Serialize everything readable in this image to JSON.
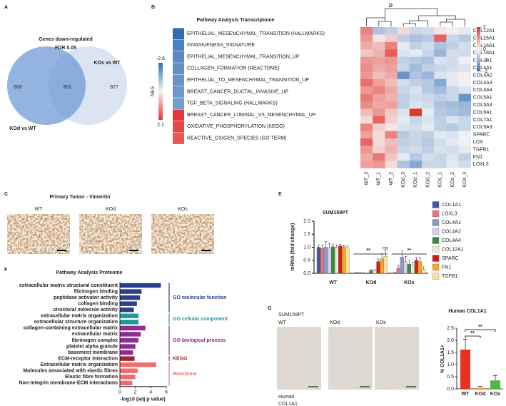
{
  "chart_data": [
    {
      "type": "venn",
      "letter": "A",
      "title": "Genes down-regulated",
      "subtitle": "FDR 0.05",
      "sets": [
        "KOd vs WT",
        "KOs vs WT"
      ],
      "counts": [
        600,
        301,
        927
      ],
      "colors": [
        "#6f9bd6",
        "#dbe4f2"
      ]
    },
    {
      "type": "pathway-heat",
      "letter": "B",
      "title": "Pathway Analysis Transcriptome",
      "scale_label": "NES",
      "nes_ticks": [
        -2.6,
        2.1
      ],
      "colors": [
        "#2f6db5",
        "#e8363a"
      ],
      "pathways": [
        "EPITHELIAL_MESENCHYMAL_TRANSITION (HALLMARKS)",
        "INVASIVENESS_SIGNATURE",
        "EPITHELIAL_MESENCHYMAL_TRANSITION_UP",
        "COLLAGEN_FORMATION (REACTOME)",
        "EPITHELIAL_TO_MESENCHYMAL_TRANSITION_UP",
        "BREAST_CANCER_DUCTAL_INVASIVE_UP",
        "TGF_BETA_SIGNALING (HALLMARKS)",
        "BREAST_CANCER_LUMINAL_VS_MESENCHYMAL_UP",
        "OXIDATIVE_PHOSPHORYLATION (KEGG)",
        "REACTIVE_OXIGEN_SPECIES (GO TERM)"
      ],
      "nes": [
        -2.6,
        -2.2,
        -2.0,
        -1.9,
        -1.8,
        -1.7,
        -1.6,
        2.1,
        1.9,
        1.7
      ]
    },
    {
      "type": "image-row",
      "letter": "C",
      "title": "Primary Tumor - Vimentin",
      "labels": [
        "WT",
        "KOd",
        "KOs"
      ]
    },
    {
      "type": "heatmap",
      "letter": "D",
      "zlim": [
        -2,
        2
      ],
      "zticks": [
        2,
        1,
        0,
        -1,
        -2
      ],
      "colormap": [
        "#3b73b9",
        "#f7f7f7",
        "#e0362c"
      ],
      "columns": [
        "WT_3",
        "WT_1",
        "WT_2",
        "KOd_3",
        "KOd_1",
        "KOd_2",
        "KOs_1",
        "KOs_2",
        "KOs_3"
      ],
      "rows": [
        "COL12A1",
        "COL15A1",
        "COL16A1",
        "COL18A1",
        "COL1A1",
        "COL4A1",
        "COL4A2",
        "COL4A3",
        "COL4A4",
        "COL5A1",
        "COL5A3",
        "COL6A1",
        "COL7A1",
        "COL9A3",
        "SPARC",
        "LOX",
        "TGFB1",
        "FN1",
        "LOXL3"
      ],
      "values": [
        [
          1.2,
          -0.8,
          -0.6,
          0.3,
          -0.5,
          -0.4,
          0.2,
          0.1,
          -0.2
        ],
        [
          1.0,
          0.2,
          0.4,
          -0.6,
          -0.8,
          -0.7,
          1.5,
          -0.5,
          -0.7
        ],
        [
          0.8,
          0.6,
          1.2,
          -0.2,
          -0.6,
          -0.4,
          -0.8,
          -0.6,
          -0.4
        ],
        [
          0.5,
          0.7,
          1.6,
          -0.3,
          -0.2,
          -0.5,
          -1.0,
          -0.4,
          -0.4
        ],
        [
          1.0,
          0.9,
          1.0,
          -0.6,
          -0.7,
          -0.8,
          -0.3,
          -0.4,
          -0.1
        ],
        [
          1.1,
          0.8,
          0.9,
          -0.5,
          -0.9,
          -0.6,
          -0.5,
          -0.4,
          -0.3
        ],
        [
          1.0,
          0.6,
          0.8,
          -1.5,
          -0.8,
          -1.0,
          -0.3,
          -0.2,
          0.1
        ],
        [
          1.4,
          0.9,
          0.6,
          -0.4,
          -0.6,
          -0.7,
          -1.2,
          -0.2,
          -0.1
        ],
        [
          1.0,
          1.2,
          0.8,
          -0.5,
          -0.3,
          -0.7,
          -0.9,
          -0.5,
          -0.3
        ],
        [
          1.3,
          0.9,
          0.7,
          -0.6,
          -0.4,
          -0.5,
          -0.6,
          -0.5,
          -1.5
        ],
        [
          1.1,
          0.8,
          0.9,
          -0.6,
          -0.3,
          -0.4,
          -0.8,
          -0.9,
          -1.0
        ],
        [
          0.6,
          1.0,
          0.5,
          -0.3,
          2.0,
          -0.2,
          -0.7,
          -0.8,
          -0.9
        ],
        [
          0.3,
          1.5,
          0.4,
          -0.2,
          -0.5,
          -0.3,
          -0.6,
          -0.3,
          -0.5
        ],
        [
          1.2,
          0.4,
          0.2,
          -0.3,
          -0.4,
          -0.2,
          -0.6,
          -0.7,
          -0.5
        ],
        [
          0.9,
          0.3,
          1.2,
          -0.7,
          -0.5,
          -0.6,
          -0.2,
          -0.3,
          -0.1
        ],
        [
          1.5,
          0.3,
          0.6,
          -0.6,
          -0.5,
          -0.7,
          -0.4,
          -0.2,
          -0.1
        ],
        [
          1.0,
          0.4,
          0.7,
          -0.5,
          -0.4,
          -0.6,
          -0.3,
          -0.4,
          -0.2
        ],
        [
          0.8,
          1.3,
          0.5,
          -0.2,
          -0.7,
          -0.4,
          -0.5,
          -0.3,
          -0.6
        ],
        [
          0.9,
          1.0,
          0.3,
          -0.8,
          -1.2,
          -0.5,
          -0.5,
          -0.2,
          -0.4
        ]
      ]
    },
    {
      "type": "bar",
      "letter": "E",
      "title": "SUM159PT",
      "ylabel": "mRNA (fold change)",
      "categories": [
        "WT",
        "KOd",
        "KOs"
      ],
      "ylim": [
        0,
        2
      ],
      "yticks": [
        {
          "value": 0,
          "label": "0.0"
        },
        0.5,
        {
          "value": 1,
          "label": "1.0"
        },
        1.5,
        {
          "value": 2,
          "label": "2.0"
        }
      ],
      "annotations": [
        "**",
        "ns",
        "**"
      ],
      "series": [
        {
          "name": "COL1A1",
          "color": "#3f5aa6",
          "values": [
            1.0,
            0.02,
            0.02
          ],
          "errors": [
            0.08,
            0.01,
            0.01
          ]
        },
        {
          "name": "LOXL3",
          "color": "#e8737a",
          "values": [
            0.97,
            0.02,
            0.2
          ],
          "errors": [
            0.12,
            0.01,
            0.1
          ]
        },
        {
          "name": "COL4A1",
          "color": "#8e97c6",
          "values": [
            1.0,
            0.01,
            0.62
          ],
          "errors": [
            0.22,
            0.01,
            0.25
          ]
        },
        {
          "name": "COL4A2",
          "color": "#d7d3ea",
          "values": [
            0.97,
            0.0,
            0.45
          ],
          "errors": [
            0.18,
            0.01,
            0.2
          ]
        },
        {
          "name": "COL4A4",
          "color": "#3f8a3c",
          "values": [
            1.02,
            0.1,
            0.35
          ],
          "errors": [
            0.1,
            0.04,
            0.15
          ]
        },
        {
          "name": "COL12A1",
          "color": "#e6eed6",
          "values": [
            1.0,
            0.1,
            0.3
          ],
          "errors": [
            0.08,
            0.04,
            0.12
          ]
        },
        {
          "name": "SPARC",
          "color": "#d7191c",
          "values": [
            1.05,
            0.45,
            0.5
          ],
          "errors": [
            0.06,
            0.1,
            0.1
          ]
        },
        {
          "name": "FN1",
          "color": "#f4a52a",
          "values": [
            1.02,
            0.55,
            0.45
          ],
          "errors": [
            0.05,
            0.2,
            0.15
          ]
        },
        {
          "name": "TGFB1",
          "color": "#f7e2a0",
          "values": [
            0.98,
            0.65,
            0.15
          ],
          "errors": [
            0.07,
            0.22,
            0.1
          ]
        }
      ]
    },
    {
      "type": "barh",
      "letter": "F",
      "title": "Pathway Analysis Proteome",
      "xlabel": "-log10 (adj p value)",
      "xlim": [
        0,
        6
      ],
      "xticks": [
        0,
        2,
        4,
        6
      ],
      "groups": [
        {
          "name": "GO molecular function",
          "color": "#2b3f8c",
          "terms": [
            "extracellular matrix structural constituent",
            "fibrinogen binding",
            "peptidase activator activity",
            "collagen binding",
            "structural molecule activity"
          ],
          "values": [
            5.3,
            2.8,
            2.6,
            2.2,
            1.8
          ]
        },
        {
          "name": "GO cellular component",
          "color": "#1f9a9a",
          "terms": [
            "extracellular matrix organization",
            "extracellular structure organization"
          ],
          "values": [
            2.4,
            2.4
          ]
        },
        {
          "name": "GO biological process",
          "color": "#8e2c8f",
          "terms": [
            "collagen-containing extracellular matrix",
            "extracellular matrix",
            "fibrinogen complex",
            "platelet alpha granule",
            "basement membrane"
          ],
          "values": [
            3.3,
            2.7,
            2.4,
            2.0,
            1.7
          ]
        },
        {
          "name": "KEGG",
          "color": "#a2272b",
          "terms": [
            "ECM-receptor interaction"
          ],
          "values": [
            1.9
          ]
        },
        {
          "name": "Reactome",
          "color": "#ee6d6f",
          "terms": [
            "Extracellular matrix organization",
            "Molecules associated with elastic fibres",
            "Elastic fibre formation",
            "Non-integrin membrane-ECM interactions"
          ],
          "values": [
            4.7,
            2.3,
            2.0,
            1.6
          ]
        }
      ]
    },
    {
      "type": "image-bar",
      "letter": "G",
      "cell_line": "SUM159PT",
      "images": [
        "WT",
        "KOd",
        "KOs"
      ],
      "caption": [
        "Human",
        "COL1A1"
      ],
      "title": "Human COL1A1",
      "ylabel": "% COL1A1+",
      "categories": [
        "WT",
        "KOd",
        "KOs"
      ],
      "values": [
        1.62,
        0.05,
        0.35
      ],
      "errors": [
        0.43,
        0.05,
        0.2
      ],
      "colors": [
        "#e8331f",
        "#f2a23a",
        "#52b548"
      ],
      "annotations": [
        "**",
        "**"
      ],
      "ylim": [
        0,
        2.5
      ],
      "yticks": [
        {
          "value": 0,
          "label": "0.0"
        },
        0.5,
        {
          "value": 1,
          "label": "1.0"
        },
        1.5,
        {
          "value": 2,
          "label": "2.0"
        },
        2.5
      ]
    }
  ]
}
